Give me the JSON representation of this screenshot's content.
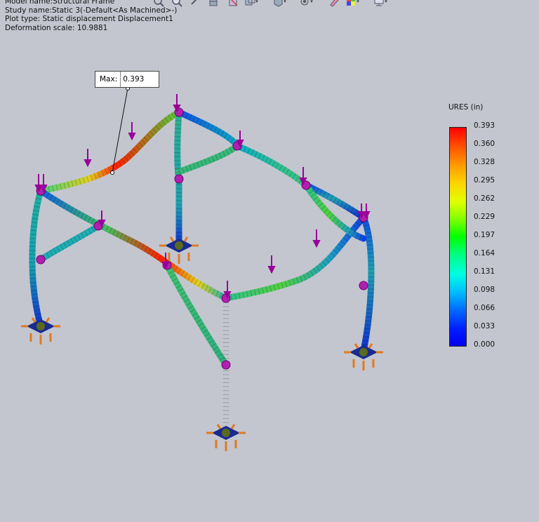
{
  "study_info": {
    "model_name": "Model name:Structural Frame",
    "study_name": "Study name:Static 3(-Default<As Machined>-)",
    "plot_type": "Plot type: Static displacement Displacement1",
    "deformation_scale": "Deformation scale: 10.9881"
  },
  "toolbar": {
    "items": [
      {
        "name": "zoom-to-fit-icon"
      },
      {
        "name": "zoom-to-area-icon"
      },
      {
        "name": "previous-view-icon"
      },
      {
        "name": "section-view-icon"
      },
      {
        "name": "dynamic-annotation-icon"
      },
      {
        "name": "view-orientation-icon"
      },
      {
        "name": "display-style-icon"
      },
      {
        "name": "hide-show-items-icon"
      },
      {
        "name": "edit-appearance-icon"
      },
      {
        "name": "apply-scene-icon"
      },
      {
        "name": "view-settings-icon"
      }
    ]
  },
  "probe": {
    "label": "Max:",
    "value": "0.393"
  },
  "legend": {
    "title": "URES (in)",
    "ticks": [
      "0.393",
      "0.360",
      "0.328",
      "0.295",
      "0.262",
      "0.229",
      "0.197",
      "0.164",
      "0.131",
      "0.098",
      "0.066",
      "0.033",
      "0.000"
    ]
  },
  "colors": {
    "background": "#c3c6cf",
    "load_arrow": "#990099",
    "fixture": "#e07a20",
    "joint": "#b020b0"
  }
}
